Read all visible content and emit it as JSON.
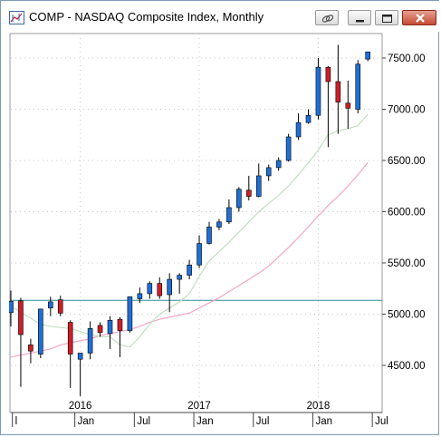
{
  "window": {
    "title": "COMP - NASDAQ Composite Index, Monthly",
    "buttons": [
      "link-icon",
      "minimize-icon",
      "restore-icon",
      "close-icon"
    ]
  },
  "colors": {
    "up_candle": "#1f6fd6",
    "down_candle": "#cc1f2a",
    "ma_short": "#bfe0bf",
    "ma_long": "#f2a6c8",
    "reference_line": "#2f8f9a"
  },
  "chart_data": {
    "type": "candlestick",
    "y_axis": {
      "min": 4200,
      "max": 7700,
      "ticks": [
        "7500.00",
        "7000.00",
        "6500.00",
        "6000.00",
        "5500.00",
        "5000.00",
        "4500.00"
      ],
      "tick_values": [
        7500,
        7000,
        6500,
        6000,
        5500,
        5000,
        4500
      ],
      "position": "right"
    },
    "year_labels": [
      {
        "label": "2016",
        "index": 7
      },
      {
        "label": "2017",
        "index": 19
      },
      {
        "label": "2018",
        "index": 31
      }
    ],
    "month_labels": [
      {
        "label": "l",
        "index": 0.7
      },
      {
        "label": "Jan",
        "index": 7
      },
      {
        "label": "Jul",
        "index": 13
      },
      {
        "label": "Jan",
        "index": 19
      },
      {
        "label": "Jul",
        "index": 25
      },
      {
        "label": "Jan",
        "index": 31
      },
      {
        "label": "Jul",
        "index": 37
      }
    ],
    "reference_level": 5135,
    "candles": [
      {
        "o": 5015,
        "h": 5230,
        "l": 4880,
        "c": 5125
      },
      {
        "o": 5130,
        "h": 5160,
        "l": 4290,
        "c": 4800
      },
      {
        "o": 4700,
        "h": 4760,
        "l": 4520,
        "c": 4640
      },
      {
        "o": 4610,
        "h": 5040,
        "l": 4570,
        "c": 5050
      },
      {
        "o": 5060,
        "h": 5170,
        "l": 4980,
        "c": 5120
      },
      {
        "o": 5140,
        "h": 5180,
        "l": 4980,
        "c": 5010
      },
      {
        "o": 4920,
        "h": 4940,
        "l": 4280,
        "c": 4610
      },
      {
        "o": 4560,
        "h": 4600,
        "l": 4200,
        "c": 4620
      },
      {
        "o": 4620,
        "h": 4930,
        "l": 4560,
        "c": 4860
      },
      {
        "o": 4890,
        "h": 4920,
        "l": 4780,
        "c": 4820
      },
      {
        "o": 4810,
        "h": 4980,
        "l": 4660,
        "c": 4940
      },
      {
        "o": 4950,
        "h": 4970,
        "l": 4580,
        "c": 4840
      },
      {
        "o": 4840,
        "h": 5170,
        "l": 4820,
        "c": 5170
      },
      {
        "o": 5150,
        "h": 5260,
        "l": 5110,
        "c": 5200
      },
      {
        "o": 5200,
        "h": 5320,
        "l": 5150,
        "c": 5300
      },
      {
        "o": 5300,
        "h": 5360,
        "l": 5150,
        "c": 5180
      },
      {
        "o": 5190,
        "h": 5400,
        "l": 5020,
        "c": 5340
      },
      {
        "o": 5340,
        "h": 5400,
        "l": 5200,
        "c": 5380
      },
      {
        "o": 5380,
        "h": 5530,
        "l": 5340,
        "c": 5480
      },
      {
        "o": 5480,
        "h": 5770,
        "l": 5450,
        "c": 5690
      },
      {
        "o": 5690,
        "h": 5900,
        "l": 5680,
        "c": 5850
      },
      {
        "o": 5850,
        "h": 5930,
        "l": 5820,
        "c": 5900
      },
      {
        "o": 5900,
        "h": 6120,
        "l": 5880,
        "c": 6040
      },
      {
        "o": 6040,
        "h": 6240,
        "l": 6000,
        "c": 6220
      },
      {
        "o": 6210,
        "h": 6350,
        "l": 6110,
        "c": 6150
      },
      {
        "o": 6150,
        "h": 6470,
        "l": 6140,
        "c": 6350
      },
      {
        "o": 6350,
        "h": 6460,
        "l": 6300,
        "c": 6430
      },
      {
        "o": 6430,
        "h": 6530,
        "l": 6400,
        "c": 6500
      },
      {
        "o": 6500,
        "h": 6760,
        "l": 6490,
        "c": 6730
      },
      {
        "o": 6730,
        "h": 6960,
        "l": 6700,
        "c": 6870
      },
      {
        "o": 6870,
        "h": 7000,
        "l": 6860,
        "c": 6940
      },
      {
        "o": 6940,
        "h": 7500,
        "l": 6900,
        "c": 7410
      },
      {
        "o": 7410,
        "h": 7420,
        "l": 6630,
        "c": 7270
      },
      {
        "o": 7270,
        "h": 7630,
        "l": 6760,
        "c": 7070
      },
      {
        "o": 7060,
        "h": 7280,
        "l": 6810,
        "c": 7010
      },
      {
        "o": 7000,
        "h": 7480,
        "l": 6960,
        "c": 7440
      },
      {
        "o": 7490,
        "h": 7560,
        "l": 7470,
        "c": 7560
      }
    ],
    "ma_short": [
      5080,
      5020,
      4960,
      4900,
      4880,
      4870,
      4860,
      4830,
      4800,
      4780,
      4780,
      4700,
      4680,
      4780,
      4900,
      5000,
      5060,
      5120,
      5200,
      5370,
      5520,
      5610,
      5700,
      5800,
      5900,
      6000,
      6080,
      6160,
      6250,
      6360,
      6480,
      6600,
      6750,
      6790,
      6810,
      6840,
      6950
    ],
    "ma_long": [
      4580,
      4600,
      4620,
      4640,
      4660,
      4700,
      4720,
      4740,
      4760,
      4790,
      4810,
      4830,
      4850,
      4880,
      4920,
      4950,
      4970,
      4990,
      5010,
      5060,
      5110,
      5160,
      5220,
      5280,
      5340,
      5400,
      5470,
      5560,
      5650,
      5750,
      5850,
      5960,
      6060,
      6150,
      6250,
      6360,
      6480
    ]
  }
}
